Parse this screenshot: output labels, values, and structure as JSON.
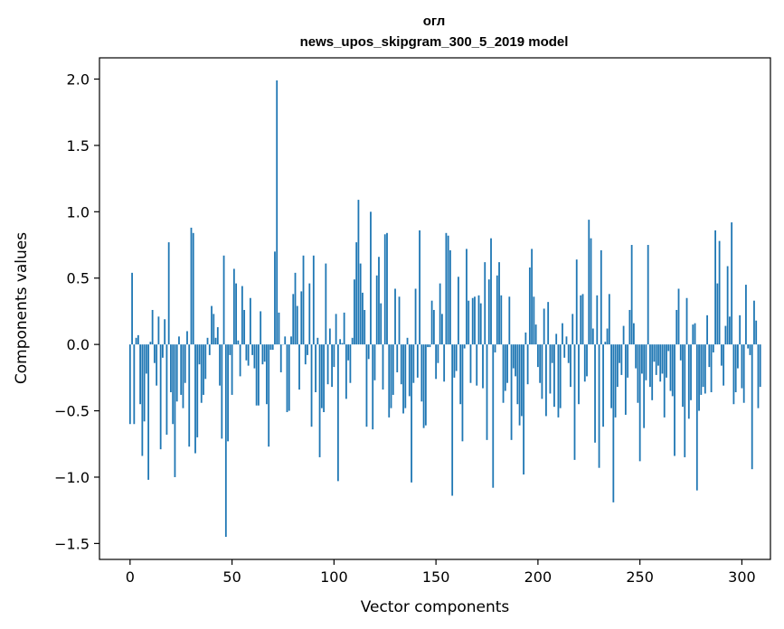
{
  "chart_data": {
    "type": "bar",
    "title": "огл",
    "subtitle": "news_upos_skipgram_300_5_2019 model",
    "xlabel": "Vector components",
    "ylabel": "Components values",
    "xlim": [
      -15,
      314
    ],
    "ylim": [
      -1.62,
      2.16
    ],
    "xticks": [
      0,
      50,
      100,
      150,
      200,
      250,
      300
    ],
    "yticks": [
      -1.5,
      -1.0,
      -0.5,
      0.0,
      0.5,
      1.0,
      1.5,
      2.0
    ],
    "ytick_labels": [
      "−1.5",
      "−1.0",
      "−0.5",
      "0.0",
      "0.5",
      "1.0",
      "1.5",
      "2.0"
    ],
    "color": "#1f77b4",
    "values": [
      -0.6,
      0.54,
      -0.6,
      0.05,
      0.07,
      -0.45,
      -0.84,
      -0.58,
      -0.22,
      -1.02,
      0.02,
      0.26,
      -0.14,
      -0.31,
      0.21,
      -0.79,
      -0.1,
      0.19,
      -0.68,
      0.77,
      -0.36,
      -0.6,
      -1.0,
      -0.43,
      0.06,
      -0.38,
      -0.48,
      -0.29,
      0.1,
      -0.77,
      0.88,
      0.84,
      -0.82,
      -0.7,
      -0.15,
      -0.44,
      -0.38,
      -0.26,
      0.05,
      -0.08,
      0.29,
      0.23,
      0.05,
      0.13,
      -0.31,
      -0.71,
      0.67,
      -1.45,
      -0.73,
      -0.08,
      -0.38,
      0.57,
      0.46,
      0.03,
      -0.24,
      0.44,
      0.26,
      -0.12,
      -0.16,
      0.35,
      -0.08,
      -0.18,
      -0.46,
      -0.46,
      0.25,
      -0.15,
      -0.13,
      -0.45,
      -0.77,
      -0.04,
      -0.04,
      0.7,
      1.99,
      0.24,
      -0.21,
      0.0,
      0.06,
      -0.51,
      -0.5,
      0.06,
      0.38,
      0.54,
      0.29,
      -0.34,
      0.4,
      0.67,
      -0.15,
      -0.08,
      0.46,
      -0.62,
      0.67,
      -0.36,
      0.05,
      -0.85,
      -0.48,
      -0.51,
      0.61,
      -0.3,
      0.12,
      -0.32,
      -0.17,
      0.23,
      -1.03,
      0.04,
      0.01,
      0.24,
      -0.41,
      -0.12,
      -0.29,
      0.05,
      0.49,
      0.77,
      1.09,
      0.61,
      0.39,
      0.26,
      -0.62,
      -0.11,
      1.0,
      -0.64,
      -0.27,
      0.52,
      0.66,
      0.31,
      -0.34,
      0.83,
      0.84,
      -0.55,
      -0.48,
      -0.38,
      0.42,
      -0.21,
      0.36,
      -0.3,
      -0.52,
      -0.48,
      0.05,
      -0.39,
      -1.04,
      -0.29,
      0.42,
      -0.25,
      0.86,
      -0.43,
      -0.63,
      -0.61,
      -0.02,
      -0.02,
      0.33,
      0.26,
      -0.26,
      -0.14,
      0.46,
      0.23,
      -0.28,
      0.84,
      0.82,
      0.71,
      -1.14,
      -0.25,
      -0.2,
      0.51,
      -0.45,
      -0.73,
      -0.03,
      0.72,
      0.33,
      -0.29,
      0.35,
      0.36,
      -0.31,
      0.37,
      0.31,
      -0.33,
      0.62,
      -0.72,
      0.49,
      0.8,
      -1.08,
      -0.06,
      0.52,
      0.62,
      0.37,
      -0.44,
      -0.35,
      -0.29,
      0.36,
      -0.72,
      -0.18,
      -0.24,
      -0.45,
      -0.61,
      -0.54,
      -0.98,
      0.09,
      -0.3,
      0.58,
      0.72,
      0.36,
      0.15,
      -0.17,
      -0.29,
      -0.41,
      0.27,
      -0.54,
      0.32,
      -0.37,
      -0.14,
      -0.47,
      0.08,
      -0.55,
      -0.48,
      0.16,
      -0.1,
      0.06,
      -0.14,
      -0.32,
      0.23,
      -0.87,
      0.64,
      -0.45,
      0.37,
      0.38,
      -0.28,
      -0.24,
      0.94,
      0.8,
      0.12,
      -0.74,
      0.37,
      -0.93,
      0.71,
      -0.62,
      0.02,
      0.12,
      0.38,
      -0.48,
      -1.19,
      -0.55,
      -0.32,
      -0.14,
      -0.23,
      0.14,
      -0.53,
      -0.25,
      0.26,
      0.75,
      0.16,
      -0.18,
      -0.44,
      -0.88,
      -0.22,
      -0.63,
      -0.27,
      0.75,
      -0.32,
      -0.42,
      -0.13,
      -0.23,
      -0.16,
      -0.28,
      -0.22,
      -0.55,
      -0.25,
      -0.05,
      -0.35,
      -0.39,
      -0.84,
      0.26,
      0.42,
      -0.12,
      -0.47,
      -0.85,
      0.35,
      -0.56,
      -0.42,
      0.15,
      0.16,
      -1.1,
      -0.5,
      -0.38,
      -0.32,
      -0.37,
      0.22,
      -0.17,
      -0.36,
      -0.06,
      0.86,
      0.46,
      0.78,
      -0.16,
      -0.31,
      0.14,
      0.59,
      0.21,
      0.92,
      -0.45,
      -0.36,
      -0.18,
      0.22,
      -0.33,
      -0.44,
      0.45,
      -0.03,
      -0.08,
      -0.94,
      0.33,
      0.18,
      -0.48,
      -0.32
    ]
  }
}
